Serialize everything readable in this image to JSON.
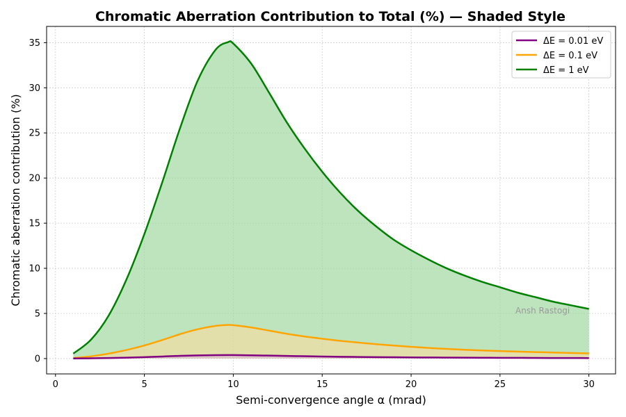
{
  "chart_data": {
    "type": "area",
    "title": "Chromatic Aberration Contribution to Total (%) — Shaded Style",
    "xlabel": "Semi-convergence angle α (mrad)",
    "ylabel": "Chromatic aberration contribution (%)",
    "xlim": [
      -0.5,
      31.5
    ],
    "ylim": [
      -1.7,
      36.8
    ],
    "xticks": [
      0,
      5,
      10,
      15,
      20,
      25,
      30
    ],
    "yticks": [
      0,
      5,
      10,
      15,
      20,
      25,
      30,
      35
    ],
    "grid": true,
    "legend_position": "top-right",
    "watermark": "Ansh Rastogi",
    "x": [
      1,
      2,
      3,
      4,
      5,
      6,
      7,
      8,
      9,
      9.7,
      10,
      11,
      12,
      13,
      14,
      15,
      16,
      17,
      18,
      19,
      20,
      21,
      22,
      23,
      24,
      25,
      26,
      27,
      28,
      29,
      30
    ],
    "series": [
      {
        "name": "ΔE = 0.01 eV",
        "color": "#800080",
        "fill": "#d9b3d9",
        "values": [
          0.01,
          0.03,
          0.06,
          0.1,
          0.16,
          0.23,
          0.3,
          0.35,
          0.38,
          0.39,
          0.39,
          0.36,
          0.33,
          0.29,
          0.26,
          0.23,
          0.2,
          0.18,
          0.16,
          0.145,
          0.13,
          0.12,
          0.11,
          0.1,
          0.09,
          0.085,
          0.08,
          0.07,
          0.065,
          0.06,
          0.055
        ]
      },
      {
        "name": "ΔE = 0.1 eV",
        "color": "#ffa500",
        "fill": "#ffdb99",
        "values": [
          0.06,
          0.25,
          0.55,
          0.95,
          1.45,
          2.05,
          2.7,
          3.25,
          3.62,
          3.72,
          3.7,
          3.45,
          3.1,
          2.75,
          2.45,
          2.2,
          1.97,
          1.78,
          1.6,
          1.45,
          1.3,
          1.18,
          1.07,
          0.98,
          0.9,
          0.83,
          0.77,
          0.72,
          0.67,
          0.62,
          0.57
        ]
      },
      {
        "name": "ΔE = 1 eV",
        "color": "#008000",
        "fill": "#a3d9a3",
        "values": [
          0.55,
          2.1,
          4.8,
          8.8,
          13.8,
          19.5,
          25.5,
          30.8,
          34.2,
          35.05,
          34.9,
          32.7,
          29.5,
          26.2,
          23.3,
          20.7,
          18.4,
          16.4,
          14.7,
          13.2,
          12.0,
          10.95,
          10.0,
          9.2,
          8.5,
          7.9,
          7.3,
          6.8,
          6.3,
          5.9,
          5.5
        ]
      }
    ]
  }
}
